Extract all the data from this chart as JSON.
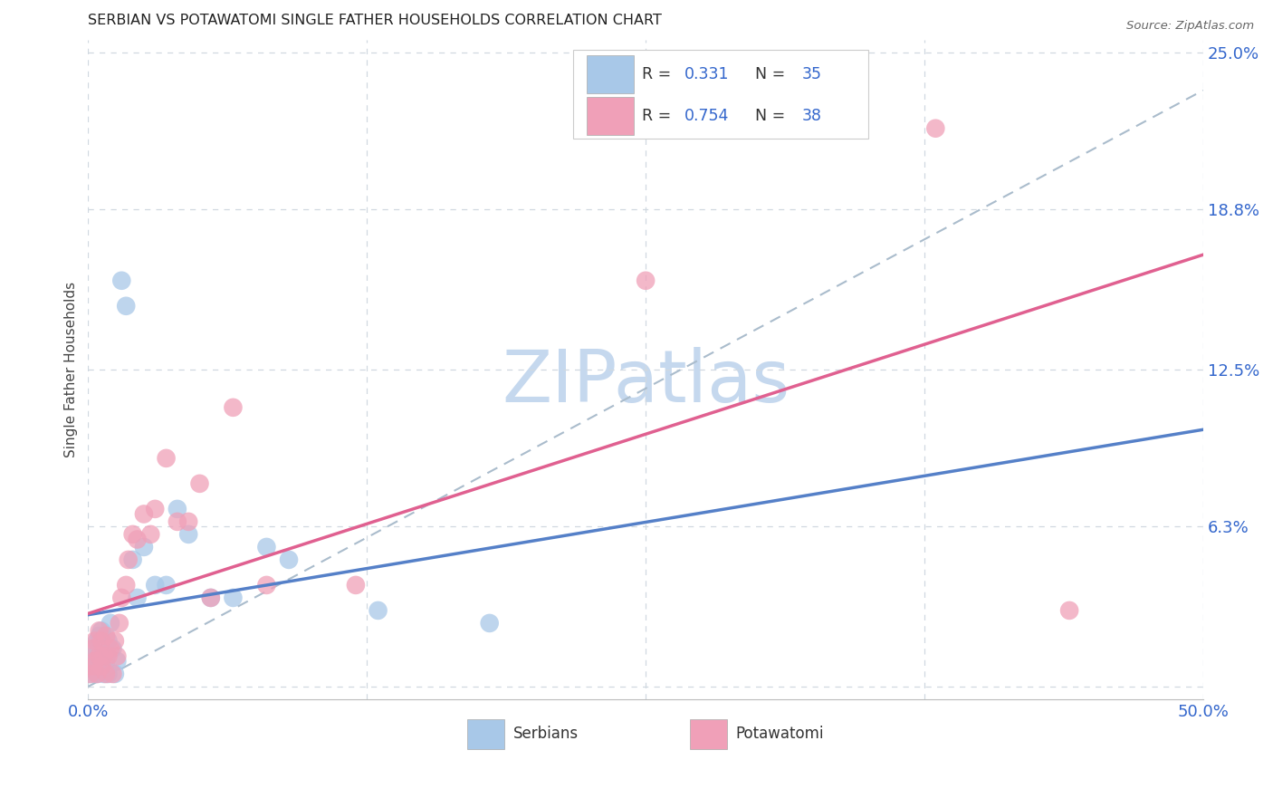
{
  "title": "SERBIAN VS POTAWATOMI SINGLE FATHER HOUSEHOLDS CORRELATION CHART",
  "source": "Source: ZipAtlas.com",
  "ylabel": "Single Father Households",
  "xlim": [
    0.0,
    0.5
  ],
  "ylim": [
    -0.005,
    0.255
  ],
  "serbian_R": 0.331,
  "serbian_N": 35,
  "potawatomi_R": 0.754,
  "potawatomi_N": 38,
  "serbian_color": "#a8c8e8",
  "potawatomi_color": "#f0a0b8",
  "serbian_line_color": "#5580c8",
  "potawatomi_line_color": "#e06090",
  "gray_line_color": "#aabccc",
  "watermark_color": "#c5d8ee",
  "background_color": "#ffffff",
  "grid_color": "#d0d8e0",
  "title_fontsize": 11.5,
  "serbian_x": [
    0.001,
    0.002,
    0.002,
    0.003,
    0.003,
    0.004,
    0.004,
    0.005,
    0.005,
    0.006,
    0.006,
    0.007,
    0.007,
    0.008,
    0.009,
    0.009,
    0.01,
    0.011,
    0.012,
    0.013,
    0.015,
    0.017,
    0.02,
    0.022,
    0.025,
    0.03,
    0.035,
    0.04,
    0.045,
    0.055,
    0.065,
    0.08,
    0.09,
    0.13,
    0.18
  ],
  "serbian_y": [
    0.005,
    0.008,
    0.012,
    0.01,
    0.015,
    0.005,
    0.018,
    0.012,
    0.02,
    0.008,
    0.022,
    0.005,
    0.015,
    0.01,
    0.005,
    0.018,
    0.025,
    0.015,
    0.005,
    0.01,
    0.16,
    0.15,
    0.05,
    0.035,
    0.055,
    0.04,
    0.04,
    0.07,
    0.06,
    0.035,
    0.035,
    0.055,
    0.05,
    0.03,
    0.025
  ],
  "potawatomi_x": [
    0.001,
    0.002,
    0.002,
    0.003,
    0.003,
    0.004,
    0.005,
    0.005,
    0.006,
    0.006,
    0.007,
    0.008,
    0.008,
    0.009,
    0.01,
    0.011,
    0.012,
    0.013,
    0.014,
    0.015,
    0.017,
    0.018,
    0.02,
    0.022,
    0.025,
    0.028,
    0.03,
    0.035,
    0.04,
    0.045,
    0.05,
    0.055,
    0.065,
    0.08,
    0.12,
    0.25,
    0.38,
    0.44
  ],
  "potawatomi_y": [
    0.005,
    0.008,
    0.015,
    0.01,
    0.018,
    0.005,
    0.012,
    0.022,
    0.008,
    0.018,
    0.012,
    0.005,
    0.02,
    0.012,
    0.015,
    0.005,
    0.018,
    0.012,
    0.025,
    0.035,
    0.04,
    0.05,
    0.06,
    0.058,
    0.068,
    0.06,
    0.07,
    0.09,
    0.065,
    0.065,
    0.08,
    0.035,
    0.11,
    0.04,
    0.04,
    0.16,
    0.22,
    0.03
  ],
  "ytick_right_vals": [
    0.0,
    0.063,
    0.125,
    0.188,
    0.25
  ],
  "ytick_right_labels": [
    "",
    "6.3%",
    "12.5%",
    "18.8%",
    "25.0%"
  ]
}
